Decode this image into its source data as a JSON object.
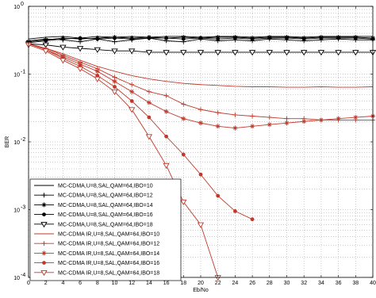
{
  "chart_data": {
    "type": "line",
    "xlabel": "Eb/No",
    "ylabel": "BER",
    "xlim": [
      0,
      40
    ],
    "ylim": [
      0.0001,
      1
    ],
    "yscale": "log",
    "grid": true,
    "legend_position": "bottom-left",
    "x_ticks": [
      0,
      2,
      4,
      6,
      8,
      10,
      12,
      14,
      16,
      18,
      20,
      22,
      24,
      26,
      28,
      30,
      32,
      34,
      36,
      38,
      40
    ],
    "x_tick_labels": [
      "0",
      "2",
      "4",
      "6",
      "8",
      "10",
      "12",
      "14",
      "16",
      "18",
      "20",
      "22",
      "24",
      "26",
      "28",
      "30",
      "32",
      "34",
      "36",
      "38",
      "40"
    ],
    "y_ticks": [
      {
        "value": 0.0001,
        "base": "10",
        "exp": "-4"
      },
      {
        "value": 0.001,
        "base": "10",
        "exp": "-3"
      },
      {
        "value": 0.01,
        "base": "10",
        "exp": "-2"
      },
      {
        "value": 0.1,
        "base": "10",
        "exp": "-1"
      },
      {
        "value": 1,
        "base": "10",
        "exp": "0"
      }
    ],
    "series": [
      {
        "name": "MC-CDMA,U=8,SAL,QAM=64,IBO=10",
        "color": "#000000",
        "marker": "none",
        "x": [
          0,
          2,
          4,
          6,
          8,
          10,
          12,
          14,
          16,
          18,
          20,
          22,
          24,
          26,
          28,
          30,
          32,
          34,
          36,
          38,
          40
        ],
        "y": [
          0.33,
          0.35,
          0.36,
          0.34,
          0.36,
          0.35,
          0.36,
          0.35,
          0.36,
          0.36,
          0.35,
          0.36,
          0.36,
          0.35,
          0.36,
          0.36,
          0.35,
          0.36,
          0.36,
          0.36,
          0.36
        ]
      },
      {
        "name": "MC-CDMA,U=8,SAL,QAM=64,IBO=12",
        "color": "#000000",
        "marker": "plus",
        "x": [
          0,
          2,
          4,
          6,
          8,
          10,
          12,
          14,
          16,
          18,
          20,
          22,
          24,
          26,
          28,
          30,
          32,
          34,
          36,
          38,
          40
        ],
        "y": [
          0.31,
          0.33,
          0.32,
          0.3,
          0.33,
          0.3,
          0.32,
          0.34,
          0.31,
          0.3,
          0.33,
          0.31,
          0.32,
          0.31,
          0.33,
          0.32,
          0.31,
          0.32,
          0.33,
          0.32,
          0.32
        ]
      },
      {
        "name": "MC-CDMA,U=8,SAL,QAM=64,IBO=14",
        "color": "#000000",
        "marker": "star",
        "x": [
          0,
          2,
          4,
          6,
          8,
          10,
          12,
          14,
          16,
          18,
          20,
          22,
          24,
          26,
          28,
          30,
          32,
          34,
          36,
          38,
          40
        ],
        "y": [
          0.3,
          0.32,
          0.34,
          0.33,
          0.34,
          0.35,
          0.34,
          0.35,
          0.34,
          0.35,
          0.34,
          0.35,
          0.35,
          0.34,
          0.35,
          0.35,
          0.34,
          0.35,
          0.35,
          0.35,
          0.34
        ]
      },
      {
        "name": "MC-CDMA,U=8,SAL,QAM=64,IBO=16",
        "color": "#000000",
        "marker": "dot",
        "x": [
          0,
          2,
          4,
          6,
          8,
          10,
          12,
          14,
          16,
          18,
          20,
          22,
          24,
          26,
          28,
          30,
          32,
          34,
          36,
          38,
          40
        ],
        "y": [
          0.29,
          0.31,
          0.33,
          0.34,
          0.33,
          0.34,
          0.33,
          0.34,
          0.34,
          0.33,
          0.34,
          0.33,
          0.34,
          0.33,
          0.34,
          0.34,
          0.33,
          0.34,
          0.34,
          0.34,
          0.33
        ]
      },
      {
        "name": "MC-CDMA,U=8,SAL,QAM=64,IBO=18",
        "color": "#000000",
        "marker": "triangle-down",
        "x": [
          0,
          2,
          4,
          6,
          8,
          10,
          12,
          14,
          16,
          18,
          20,
          22,
          24,
          26,
          28,
          30,
          32,
          34,
          36,
          38,
          40
        ],
        "y": [
          0.28,
          0.27,
          0.25,
          0.24,
          0.23,
          0.22,
          0.22,
          0.21,
          0.21,
          0.21,
          0.21,
          0.21,
          0.21,
          0.21,
          0.21,
          0.21,
          0.21,
          0.21,
          0.21,
          0.21,
          0.21
        ]
      },
      {
        "name": "MC-CDMA IR,U=8,SAL,QAM=64,IBO=10",
        "color": "#c0392b",
        "marker": "none",
        "x": [
          0,
          2,
          4,
          6,
          8,
          10,
          12,
          14,
          16,
          18,
          20,
          22,
          24,
          26,
          28,
          30,
          32,
          34,
          36,
          38,
          40
        ],
        "y": [
          0.28,
          0.24,
          0.2,
          0.16,
          0.13,
          0.11,
          0.095,
          0.085,
          0.078,
          0.073,
          0.07,
          0.068,
          0.066,
          0.065,
          0.065,
          0.064,
          0.064,
          0.065,
          0.064,
          0.064,
          0.065
        ]
      },
      {
        "name": "MC-CDMA IR,U=8,SAL,QAM=64,IBO=12",
        "color": "#c0392b",
        "marker": "plus",
        "x": [
          0,
          2,
          4,
          6,
          8,
          10,
          12,
          14,
          16,
          18,
          20,
          22,
          24,
          26,
          28,
          30,
          32,
          34,
          36,
          38,
          40
        ],
        "y": [
          0.28,
          0.24,
          0.19,
          0.15,
          0.12,
          0.09,
          0.07,
          0.055,
          0.048,
          0.036,
          0.03,
          0.027,
          0.025,
          0.024,
          0.023,
          0.022,
          0.022,
          0.021,
          0.021,
          0.021,
          0.021
        ]
      },
      {
        "name": "MC-CDMA IR,U=8,SAL,QAM=64,IBO=14",
        "color": "#c0392b",
        "marker": "star",
        "x": [
          0,
          2,
          4,
          6,
          8,
          10,
          12,
          14,
          16,
          18,
          20,
          22,
          24,
          26,
          28,
          30,
          32,
          34,
          36,
          38,
          40
        ],
        "y": [
          0.28,
          0.23,
          0.18,
          0.14,
          0.11,
          0.078,
          0.055,
          0.038,
          0.028,
          0.022,
          0.019,
          0.017,
          0.016,
          0.017,
          0.018,
          0.019,
          0.02,
          0.021,
          0.022,
          0.023,
          0.024
        ]
      },
      {
        "name": "MC-CDMA IR,U=8,SAL,QAM=64,IBO=16",
        "color": "#c0392b",
        "marker": "dot",
        "x": [
          0,
          2,
          4,
          6,
          8,
          10,
          12,
          14,
          16,
          18,
          20,
          22,
          24,
          26
        ],
        "y": [
          0.28,
          0.23,
          0.17,
          0.13,
          0.095,
          0.065,
          0.04,
          0.023,
          0.012,
          0.0065,
          0.0033,
          0.0016,
          0.00095,
          0.00072
        ]
      },
      {
        "name": "MC-CDMA IR,U=8,SAL,QAM=64,IBO=18",
        "color": "#c0392b",
        "marker": "triangle-down",
        "x": [
          0,
          2,
          4,
          6,
          8,
          10,
          12,
          14,
          16,
          18,
          20,
          22
        ],
        "y": [
          0.27,
          0.22,
          0.16,
          0.12,
          0.085,
          0.055,
          0.03,
          0.012,
          0.0045,
          0.0013,
          0.0006,
          0.0001
        ]
      }
    ]
  }
}
